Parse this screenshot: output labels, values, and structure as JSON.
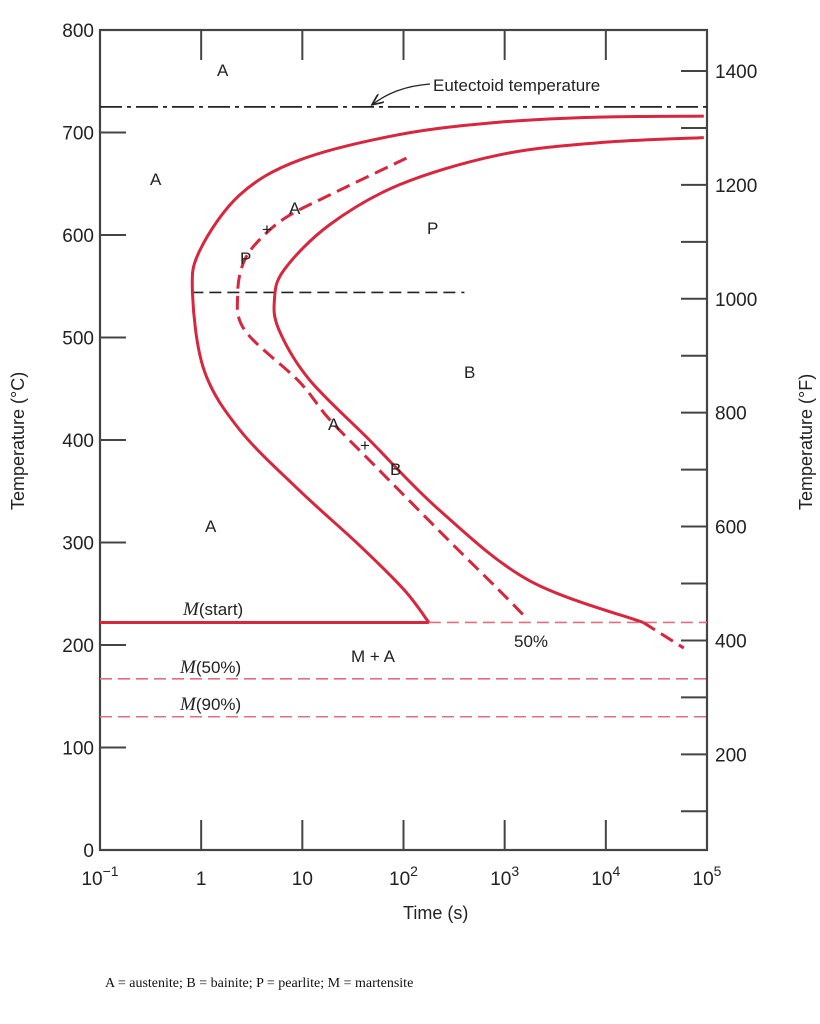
{
  "chart_data": {
    "type": "line",
    "xlabel": "Time (s)",
    "ylabel": "Temperature (°C)",
    "y2label": "Temperature (°F)",
    "xscale": "log",
    "xlim": [
      0.1,
      100000
    ],
    "ylim": [
      0,
      800
    ],
    "y2lim_F": [
      32,
      1472
    ],
    "grid": false,
    "x_ticks": [
      {
        "base": "10",
        "exp": "−1",
        "value": 0.1
      },
      {
        "base": "1",
        "exp": "",
        "value": 1
      },
      {
        "base": "10",
        "exp": "",
        "value": 10
      },
      {
        "base": "10",
        "exp": "2",
        "value": 100
      },
      {
        "base": "10",
        "exp": "3",
        "value": 1000
      },
      {
        "base": "10",
        "exp": "4",
        "value": 10000
      },
      {
        "base": "10",
        "exp": "5",
        "value": 100000
      }
    ],
    "y_ticks": [
      "0",
      "100",
      "200",
      "300",
      "400",
      "500",
      "600",
      "700",
      "800"
    ],
    "y2_ticks": [
      "200",
      "400",
      "600",
      "800",
      "1000",
      "1200",
      "1400"
    ],
    "colors": {
      "curve": "#d7263d",
      "axis": "#444444",
      "reference": "#222222"
    },
    "series": [
      {
        "kind": "start",
        "style": "solid",
        "points": [
          [
            178,
            222
          ],
          [
            101,
            254
          ],
          [
            36,
            298
          ],
          [
            9.3,
            351
          ],
          [
            2.4,
            410
          ],
          [
            1.07,
            468
          ],
          [
            0.82,
            544
          ],
          [
            0.97,
            585
          ],
          [
            2.4,
            639
          ],
          [
            9.3,
            673
          ],
          [
            91,
            698
          ],
          [
            870,
            710
          ],
          [
            8500,
            715
          ],
          [
            93000,
            716
          ]
        ]
      },
      {
        "kind": "finish",
        "style": "solid",
        "points": [
          [
            93000,
            695
          ],
          [
            8500,
            690
          ],
          [
            870,
            678
          ],
          [
            91,
            649
          ],
          [
            18.6,
            610
          ],
          [
            6.6,
            566
          ],
          [
            5.3,
            537
          ],
          [
            5.9,
            507
          ],
          [
            11.7,
            459
          ],
          [
            46,
            400
          ],
          [
            224,
            332
          ],
          [
            1740,
            263
          ],
          [
            23400,
            222
          ]
        ]
      },
      {
        "kind": "finish-extension",
        "style": "dashed",
        "points": [
          [
            23400,
            222
          ],
          [
            59000,
            197
          ]
        ]
      },
      {
        "kind": "50%",
        "style": "dashed",
        "points": [
          [
            107,
            675
          ],
          [
            18.6,
            639
          ],
          [
            7.4,
            619
          ],
          [
            4.2,
            600
          ],
          [
            2.7,
            576
          ],
          [
            2.3,
            544
          ],
          [
            2.7,
            507
          ],
          [
            9.3,
            457
          ],
          [
            18.6,
            420
          ],
          [
            57,
            371
          ],
          [
            280,
            302
          ],
          [
            870,
            254
          ],
          [
            1650,
            226
          ]
        ]
      }
    ],
    "reference_lines": [
      {
        "name": "eutectoid",
        "temp": 725,
        "style": "dash-dot",
        "from": 0.1,
        "to": 100000
      },
      {
        "name": "isothermal",
        "temp": 544,
        "style": "dashed",
        "from": 0.8,
        "to": 400
      },
      {
        "name": "M-start",
        "temp": 222,
        "style": "solid-then-dashed",
        "from": 0.1,
        "to": 100000,
        "solid_until": 178
      },
      {
        "name": "M-50",
        "temp": 167,
        "style": "dashed",
        "from": 0.1,
        "to": 100000
      },
      {
        "name": "M-90",
        "temp": 130,
        "style": "dashed",
        "from": 0.1,
        "to": 100000
      }
    ],
    "annotations": {
      "eutectoid": "Eutectoid temperature",
      "a_top": "A",
      "a_left": "A",
      "a_mid": "A",
      "plus_upper": "+",
      "p_mid": "P",
      "p_right": "P",
      "b_right": "B",
      "a_lower": "A",
      "plus_lower": "+",
      "b_lower": "B",
      "a_bottom": "A",
      "m_start": "(start)",
      "m_plus_a": "M + A",
      "pct50": "50%",
      "m50": "(50%)",
      "m90": "(90%)",
      "m_symbol": "M"
    }
  },
  "caption": "A = austenite;  B = bainite; P = pearlite;  M = martensite"
}
